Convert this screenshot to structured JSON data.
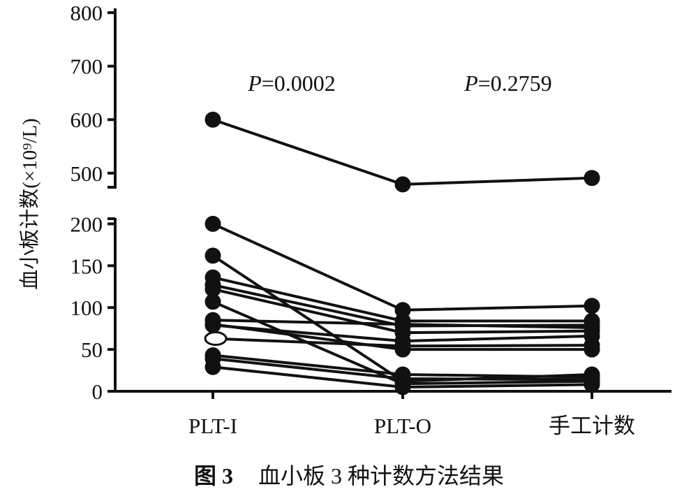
{
  "chart_data": {
    "type": "line",
    "categories": [
      "PLT-I",
      "PLT-O",
      "手工计数"
    ],
    "ylabel": "血小板计数(×10⁹/L)",
    "yaxis_break": true,
    "y_segments": [
      {
        "range": [
          0,
          207
        ],
        "ticks": [
          0,
          50,
          100,
          150,
          200
        ]
      },
      {
        "range": [
          471,
          808
        ],
        "ticks": [
          500,
          600,
          700,
          800
        ]
      }
    ],
    "grid": false,
    "legend": "none",
    "annotations": [
      {
        "between": [
          "PLT-I",
          "PLT-O"
        ],
        "italic": "P",
        "text": "=0.0002"
      },
      {
        "between": [
          "PLT-O",
          "手工计数"
        ],
        "italic": "P",
        "text": "=0.2759"
      }
    ],
    "series": [
      {
        "values": [
          600,
          479,
          491
        ]
      },
      {
        "values": [
          200,
          97,
          102
        ]
      },
      {
        "values": [
          162,
          12,
          20
        ]
      },
      {
        "values": [
          136,
          84,
          84
        ]
      },
      {
        "values": [
          127,
          78,
          79
        ]
      },
      {
        "values": [
          122,
          70,
          72
        ]
      },
      {
        "values": [
          107,
          9,
          12
        ]
      },
      {
        "values": [
          85,
          80,
          76
        ]
      },
      {
        "values": [
          79,
          60,
          66
        ]
      },
      {
        "values": [
          80,
          50,
          50
        ]
      },
      {
        "values": [
          63,
          54,
          55
        ],
        "open_marker_at": [
          "PLT-I"
        ]
      },
      {
        "values": [
          43,
          20,
          17
        ]
      },
      {
        "values": [
          39,
          15,
          14
        ]
      },
      {
        "values": [
          29,
          5,
          8
        ]
      }
    ]
  },
  "caption": {
    "label": "图 3",
    "text": "血小板 3 种计数方法结果"
  }
}
